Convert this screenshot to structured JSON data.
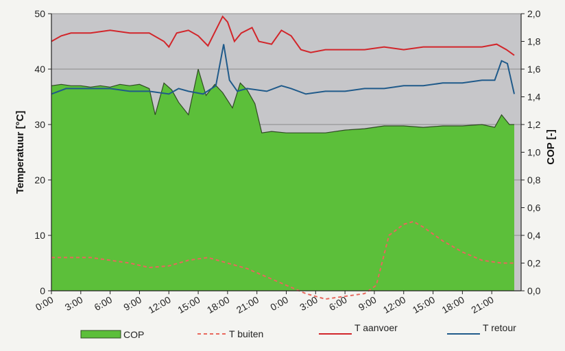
{
  "chart_data": {
    "type": "line",
    "title": "",
    "xlabel": "",
    "ylabel_left": "Temperatuur [°C]",
    "ylabel_right": "COP [-]",
    "ylim_left": [
      0,
      50
    ],
    "ylim_right": [
      0.0,
      2.0
    ],
    "yticks_left": [
      "0",
      "10",
      "20",
      "30",
      "40",
      "50"
    ],
    "yticks_right": [
      "0,0",
      "0,2",
      "0,4",
      "0,6",
      "0,8",
      "1,0",
      "1,2",
      "1,4",
      "1,6",
      "1,8",
      "2,0"
    ],
    "x_tick_labels": [
      "0:00",
      "3:00",
      "6:00",
      "9:00",
      "12:00",
      "15:00",
      "18:00",
      "21:00",
      "0:00",
      "3:00",
      "6:00",
      "9:00",
      "12:00",
      "15:00",
      "18:00",
      "21:00"
    ],
    "x_hours": [
      0,
      48
    ],
    "grid": "horizontal",
    "legend_position": "bottom",
    "colors": {
      "plot_background": "#c6c6c9",
      "cop_fill": "#5cbf3a",
      "cop_edge": "#2f4a24",
      "t_buiten": "#e8675c",
      "t_aanvoer": "#d2252a",
      "t_retour": "#1f5a8a"
    },
    "series": [
      {
        "name": "COP",
        "axis": "right",
        "kind": "area",
        "points": [
          [
            0,
            1.48
          ],
          [
            1,
            1.49
          ],
          [
            2,
            1.48
          ],
          [
            3,
            1.48
          ],
          [
            4,
            1.47
          ],
          [
            5,
            1.48
          ],
          [
            6,
            1.47
          ],
          [
            7,
            1.49
          ],
          [
            8,
            1.48
          ],
          [
            9,
            1.49
          ],
          [
            10,
            1.46
          ],
          [
            10.6,
            1.27
          ],
          [
            11.5,
            1.5
          ],
          [
            12.3,
            1.45
          ],
          [
            13,
            1.36
          ],
          [
            14,
            1.27
          ],
          [
            15,
            1.6
          ],
          [
            15.8,
            1.41
          ],
          [
            16.7,
            1.49
          ],
          [
            17.5,
            1.43
          ],
          [
            18.5,
            1.32
          ],
          [
            19.3,
            1.5
          ],
          [
            20,
            1.45
          ],
          [
            20.8,
            1.35
          ],
          [
            21.5,
            1.14
          ],
          [
            22.5,
            1.15
          ],
          [
            24,
            1.14
          ],
          [
            26,
            1.14
          ],
          [
            28,
            1.14
          ],
          [
            30,
            1.16
          ],
          [
            32,
            1.17
          ],
          [
            34,
            1.19
          ],
          [
            36,
            1.19
          ],
          [
            38,
            1.18
          ],
          [
            40,
            1.19
          ],
          [
            42,
            1.19
          ],
          [
            44,
            1.2
          ],
          [
            45.3,
            1.18
          ],
          [
            46,
            1.27
          ],
          [
            46.8,
            1.2
          ],
          [
            47.3,
            1.2
          ]
        ]
      },
      {
        "name": "T buiten",
        "axis": "left",
        "kind": "dashed-line",
        "points": [
          [
            0,
            6
          ],
          [
            2,
            6
          ],
          [
            4,
            6
          ],
          [
            6,
            5.5
          ],
          [
            8,
            5
          ],
          [
            10,
            4.2
          ],
          [
            12,
            4.5
          ],
          [
            14,
            5.5
          ],
          [
            16,
            6
          ],
          [
            18,
            5
          ],
          [
            20,
            4
          ],
          [
            22,
            2.5
          ],
          [
            24,
            1
          ],
          [
            26,
            -0.5
          ],
          [
            28,
            -1.5
          ],
          [
            30,
            -1
          ],
          [
            32,
            -0.5
          ],
          [
            33.2,
            1
          ],
          [
            34.5,
            10
          ],
          [
            36,
            12
          ],
          [
            37,
            12.5
          ],
          [
            38,
            11.5
          ],
          [
            40,
            9
          ],
          [
            42,
            7
          ],
          [
            44,
            5.5
          ],
          [
            46,
            5
          ],
          [
            47.3,
            5
          ]
        ]
      },
      {
        "name": "T aanvoer",
        "axis": "left",
        "kind": "line",
        "points": [
          [
            0,
            45
          ],
          [
            1,
            46
          ],
          [
            2,
            46.5
          ],
          [
            4,
            46.5
          ],
          [
            6,
            47
          ],
          [
            8,
            46.5
          ],
          [
            10,
            46.5
          ],
          [
            11.5,
            45
          ],
          [
            12,
            44
          ],
          [
            12.8,
            46.5
          ],
          [
            14,
            47
          ],
          [
            15,
            46
          ],
          [
            16,
            44.2
          ],
          [
            17.5,
            49.5
          ],
          [
            18,
            48.5
          ],
          [
            18.7,
            45
          ],
          [
            19.4,
            46.5
          ],
          [
            20.5,
            47.5
          ],
          [
            21.2,
            45
          ],
          [
            22.5,
            44.5
          ],
          [
            23.5,
            47
          ],
          [
            24.5,
            46
          ],
          [
            25.5,
            43.5
          ],
          [
            26.5,
            43
          ],
          [
            28,
            43.5
          ],
          [
            30,
            43.5
          ],
          [
            32,
            43.5
          ],
          [
            34,
            44
          ],
          [
            36,
            43.5
          ],
          [
            38,
            44
          ],
          [
            40,
            44
          ],
          [
            42,
            44
          ],
          [
            44,
            44
          ],
          [
            45.5,
            44.5
          ],
          [
            46.5,
            43.5
          ],
          [
            47.3,
            42.5
          ]
        ]
      },
      {
        "name": "T retour",
        "axis": "left",
        "kind": "line",
        "points": [
          [
            0,
            35.5
          ],
          [
            1.5,
            36.5
          ],
          [
            3,
            36.5
          ],
          [
            6,
            36.5
          ],
          [
            8,
            36
          ],
          [
            10,
            36
          ],
          [
            12,
            35.5
          ],
          [
            13,
            36.5
          ],
          [
            14,
            36
          ],
          [
            15.5,
            35.5
          ],
          [
            16.8,
            37
          ],
          [
            17.6,
            44.5
          ],
          [
            18.2,
            38
          ],
          [
            19,
            36
          ],
          [
            20,
            36.5
          ],
          [
            22,
            36
          ],
          [
            23.5,
            37
          ],
          [
            24.5,
            36.5
          ],
          [
            26,
            35.5
          ],
          [
            28,
            36
          ],
          [
            30,
            36
          ],
          [
            32,
            36.5
          ],
          [
            34,
            36.5
          ],
          [
            36,
            37
          ],
          [
            38,
            37
          ],
          [
            40,
            37.5
          ],
          [
            42,
            37.5
          ],
          [
            44,
            38
          ],
          [
            45.3,
            38
          ],
          [
            46,
            41.5
          ],
          [
            46.6,
            41
          ],
          [
            47.3,
            35.5
          ]
        ]
      }
    ]
  }
}
